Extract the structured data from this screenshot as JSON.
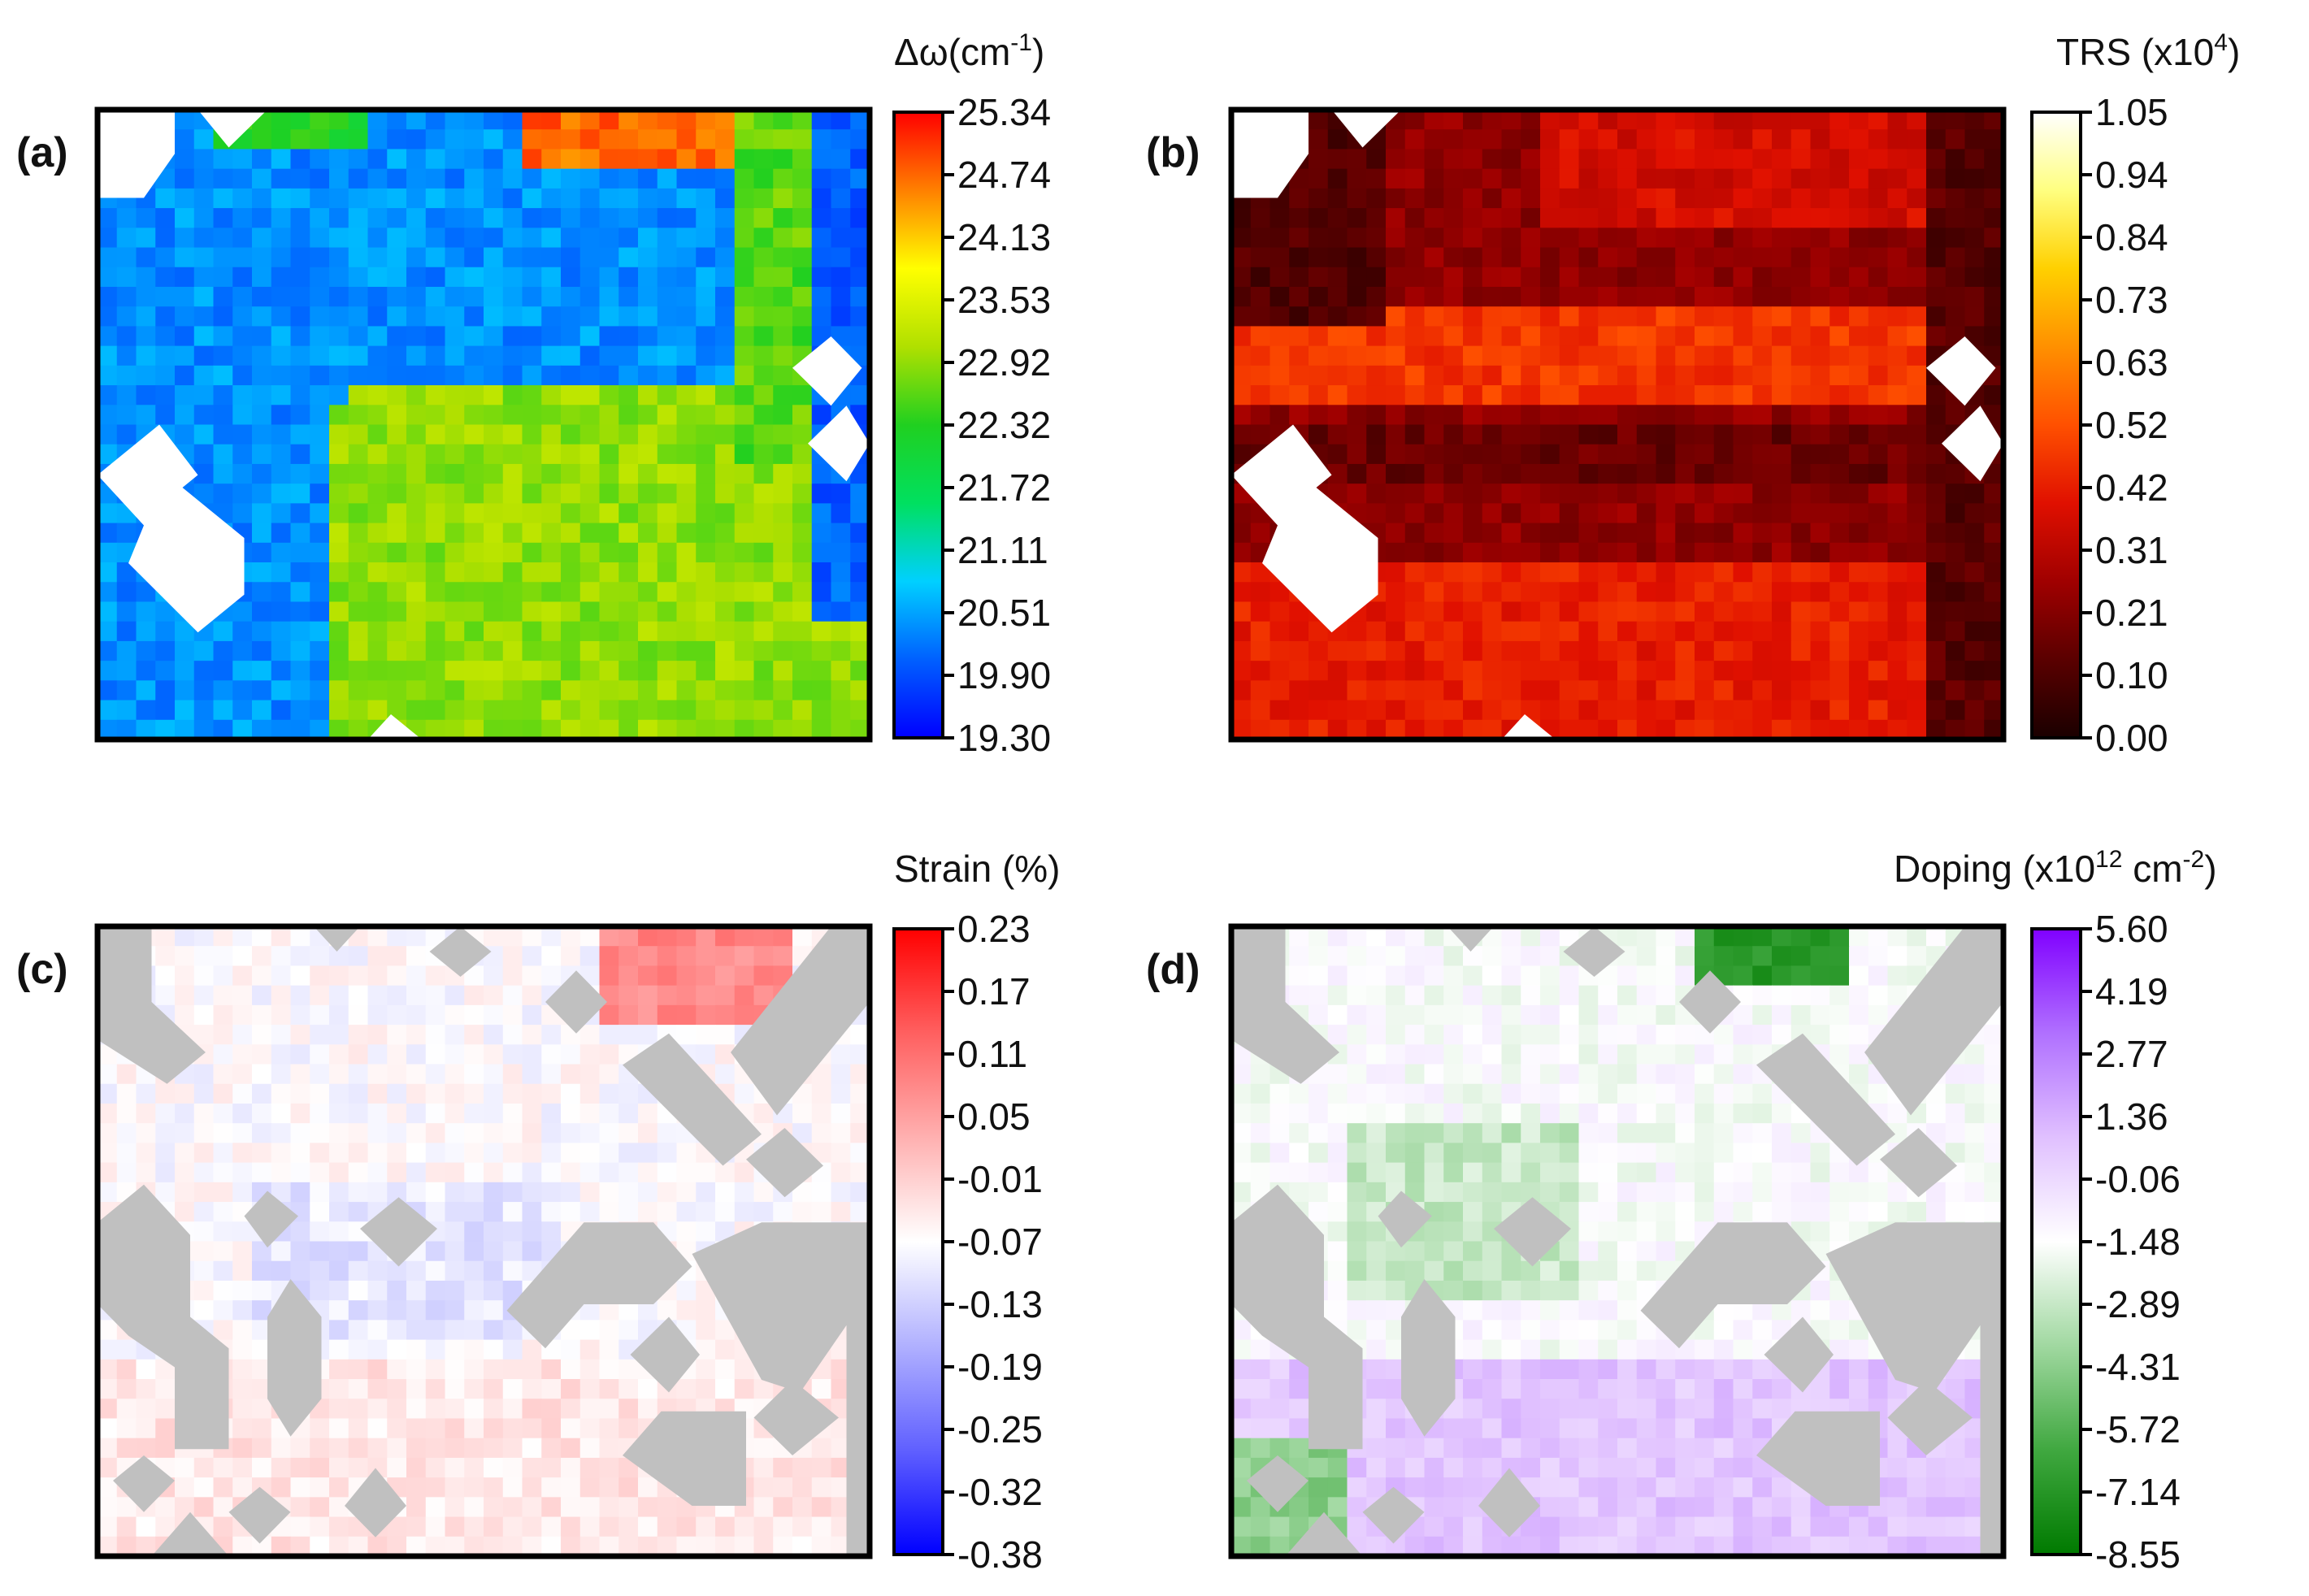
{
  "chart_data": [
    {
      "type": "heatmap",
      "panel_label": "(a)",
      "colorbar": {
        "title": "Δω(cm",
        "title_sup": "-1",
        "title_end": ")",
        "ticks": [
          "25.34",
          "24.74",
          "24.13",
          "23.53",
          "22.92",
          "22.32",
          "21.72",
          "21.11",
          "20.51",
          "19.90",
          "19.30"
        ],
        "range": [
          19.3,
          25.34
        ],
        "colormap": [
          "#0000ff",
          "#0060ff",
          "#00d0ff",
          "#00e060",
          "#20d020",
          "#b0e000",
          "#ffff00",
          "#ff8000",
          "#ff0000"
        ]
      },
      "description_values": {
        "min": 19.3,
        "max": 25.34
      }
    },
    {
      "type": "heatmap",
      "panel_label": "(b)",
      "colorbar": {
        "title": "TRS (x10",
        "title_sup": "4",
        "title_end": ")",
        "ticks": [
          "1.05",
          "0.94",
          "0.84",
          "0.73",
          "0.63",
          "0.52",
          "0.42",
          "0.31",
          "0.21",
          "0.10",
          "0.00"
        ],
        "range": [
          0.0,
          1.05
        ],
        "colormap": [
          "#1a0000",
          "#5a0000",
          "#a00000",
          "#e01000",
          "#ff5000",
          "#ff9000",
          "#ffd000",
          "#ffff80",
          "#ffffff"
        ]
      },
      "description_values": {
        "min": 0.0,
        "max": 1.05
      }
    },
    {
      "type": "heatmap",
      "panel_label": "(c)",
      "colorbar": {
        "title": "Strain (%)",
        "title_sup": "",
        "title_end": "",
        "ticks": [
          "0.23",
          "0.17",
          "0.11",
          "0.05",
          "-0.01",
          "-0.07",
          "-0.13",
          "-0.19",
          "-0.25",
          "-0.32",
          "-0.38"
        ],
        "range": [
          -0.38,
          0.23
        ],
        "colormap": [
          "#0000ff",
          "#6060ff",
          "#b0b0ff",
          "#ffffff",
          "#ffb0b0",
          "#ff6060",
          "#ff0000"
        ]
      },
      "description_values": {
        "min": -0.38,
        "max": 0.23
      }
    },
    {
      "type": "heatmap",
      "panel_label": "(d)",
      "colorbar": {
        "title": "Doping (x10",
        "title_sup": "12",
        "title_mid": " cm",
        "title_sup2": "-2",
        "title_end": ")",
        "ticks": [
          "5.60",
          "4.19",
          "2.77",
          "1.36",
          "-0.06",
          "-1.48",
          "-2.89",
          "-4.31",
          "-5.72",
          "-7.14",
          "-8.55"
        ],
        "range": [
          -8.55,
          5.6
        ],
        "colormap": [
          "#007a00",
          "#40a840",
          "#a0d8a0",
          "#ffffff",
          "#e0c0ff",
          "#b070ff",
          "#8000ff"
        ]
      },
      "description_values": {
        "min": -8.55,
        "max": 5.6
      }
    }
  ]
}
